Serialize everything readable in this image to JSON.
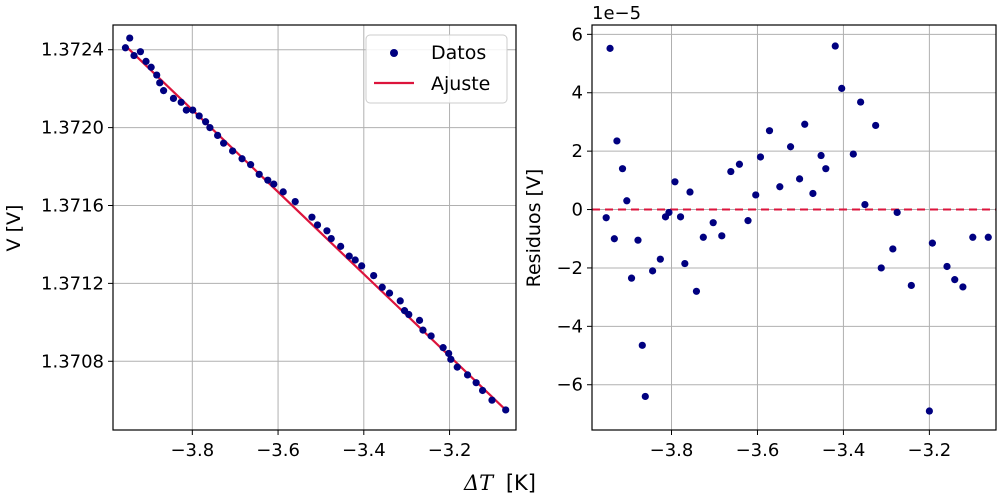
{
  "colors": {
    "points": "#000080",
    "fit": "#dc143c",
    "grid": "#b0b0b0",
    "zero_line": "#dc143c"
  },
  "shared": {
    "xlabel_math": "ΔT",
    "xlabel_unit": "[K]"
  },
  "chart_data": [
    {
      "type": "scatter",
      "xlabel": "",
      "ylabel": "V [V]",
      "xlim": [
        -3.985,
        -3.045
      ],
      "ylim": [
        1.370447,
        1.372527
      ],
      "xticks": [
        -3.8,
        -3.6,
        -3.4,
        -3.2
      ],
      "xtick_labels": [
        "−3.8",
        "−3.6",
        "−3.4",
        "−3.2"
      ],
      "yticks": [
        1.3708,
        1.3712,
        1.3716,
        1.372,
        1.3724
      ],
      "ytick_labels": [
        "1.3708",
        "1.3712",
        "1.3716",
        "1.3720",
        "1.3724"
      ],
      "grid": true,
      "legend_position": "top-right",
      "series": [
        {
          "name": "Datos",
          "kind": "scatter",
          "x": [
            -3.956,
            -3.946,
            -3.936,
            -3.921,
            -3.908,
            -3.896,
            -3.883,
            -3.876,
            -3.867,
            -3.844,
            -3.826,
            -3.814,
            -3.799,
            -3.784,
            -3.769,
            -3.759,
            -3.741,
            -3.727,
            -3.706,
            -3.684,
            -3.664,
            -3.644,
            -3.624,
            -3.61,
            -3.588,
            -3.56,
            -3.521,
            -3.508,
            -3.486,
            -3.476,
            -3.454,
            -3.434,
            -3.42,
            -3.405,
            -3.377,
            -3.357,
            -3.34,
            -3.315,
            -3.305,
            -3.295,
            -3.27,
            -3.262,
            -3.243,
            -3.215,
            -3.202,
            -3.197,
            -3.182,
            -3.158,
            -3.138,
            -3.123,
            -3.101,
            -3.069
          ],
          "y": [
            1.37241,
            1.37246,
            1.37237,
            1.37239,
            1.37234,
            1.37231,
            1.37227,
            1.37223,
            1.37219,
            1.37215,
            1.37213,
            1.37209,
            1.37209,
            1.37206,
            1.37203,
            1.372,
            1.37196,
            1.37192,
            1.37188,
            1.37184,
            1.37181,
            1.37176,
            1.37173,
            1.37171,
            1.37167,
            1.37162,
            1.37154,
            1.3715,
            1.37147,
            1.37143,
            1.37139,
            1.37134,
            1.37132,
            1.37129,
            1.37124,
            1.37118,
            1.37115,
            1.37111,
            1.37106,
            1.37104,
            1.37101,
            1.37096,
            1.37093,
            1.37087,
            1.37084,
            1.37081,
            1.37077,
            1.37073,
            1.37069,
            1.37065,
            1.3706,
            1.37055
          ]
        },
        {
          "name": "Ajuste",
          "kind": "line",
          "x": [
            -3.956,
            -3.069
          ],
          "y": [
            1.37242,
            1.37055
          ]
        }
      ]
    },
    {
      "type": "scatter",
      "xlabel": "",
      "ylabel": "Residuos [V]",
      "offset_text": "1e−5",
      "xlim": [
        -3.985,
        -3.045
      ],
      "ylim": [
        -7.55,
        6.32
      ],
      "xticks": [
        -3.8,
        -3.6,
        -3.4,
        -3.2
      ],
      "xtick_labels": [
        "−3.8",
        "−3.6",
        "−3.4",
        "−3.2"
      ],
      "yticks": [
        -6,
        -4,
        -2,
        0,
        2,
        4,
        6
      ],
      "ytick_labels": [
        "−6",
        "−4",
        "−2",
        "0",
        "2",
        "4",
        "6"
      ],
      "grid": true,
      "reference_line_y": 0,
      "series": [
        {
          "kind": "scatter",
          "x": [
            -3.952,
            -3.943,
            -3.933,
            -3.927,
            -3.914,
            -3.904,
            -3.893,
            -3.878,
            -3.868,
            -3.861,
            -3.844,
            -3.826,
            -3.814,
            -3.806,
            -3.792,
            -3.779,
            -3.769,
            -3.757,
            -3.742,
            -3.726,
            -3.703,
            -3.683,
            -3.662,
            -3.642,
            -3.622,
            -3.604,
            -3.593,
            -3.572,
            -3.548,
            -3.523,
            -3.502,
            -3.49,
            -3.471,
            -3.452,
            -3.441,
            -3.419,
            -3.404,
            -3.377,
            -3.36,
            -3.35,
            -3.325,
            -3.312,
            -3.285,
            -3.275,
            -3.242,
            -3.2,
            -3.193,
            -3.159,
            -3.141,
            -3.122,
            -3.099,
            -3.063
          ],
          "y": [
            -0.28,
            5.52,
            -1.0,
            2.35,
            1.4,
            0.3,
            -2.35,
            -1.05,
            -4.65,
            -6.4,
            -2.1,
            -1.7,
            -0.25,
            -0.1,
            0.95,
            -0.25,
            -1.85,
            0.6,
            -2.8,
            -0.95,
            -0.45,
            -0.9,
            1.3,
            1.55,
            -0.38,
            0.5,
            1.8,
            2.7,
            0.78,
            2.15,
            1.05,
            2.92,
            0.55,
            1.85,
            1.4,
            5.6,
            4.15,
            1.9,
            3.68,
            0.17,
            2.88,
            -2.0,
            -1.35,
            -0.1,
            -2.6,
            -6.9,
            -1.15,
            -1.95,
            -2.4,
            -2.65,
            -0.95,
            -0.95
          ]
        }
      ]
    }
  ]
}
